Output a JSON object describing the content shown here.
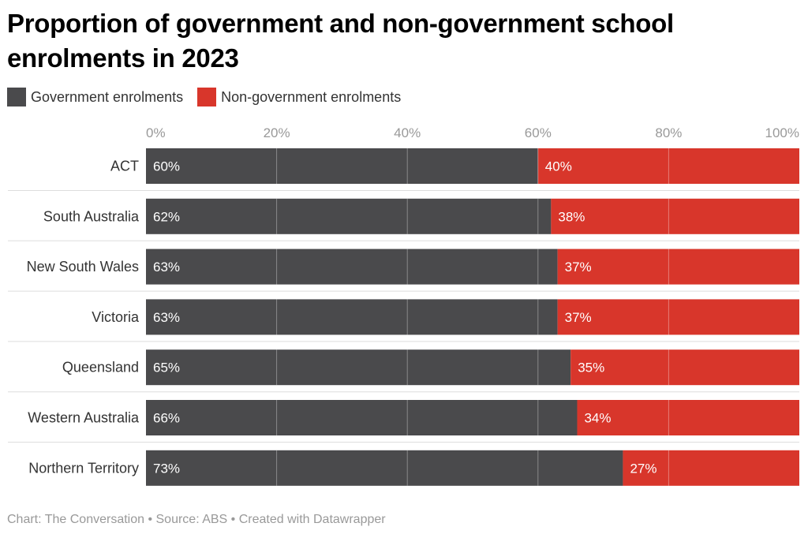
{
  "chart_data": {
    "type": "bar",
    "orientation": "horizontal",
    "stacked": true,
    "title": "Proportion of government and non-government school enrolments in 2023",
    "categories": [
      "ACT",
      "South Australia",
      "New South Wales",
      "Victoria",
      "Queensland",
      "Western Australia",
      "Northern Territory"
    ],
    "series": [
      {
        "name": "Government enrolments",
        "color": "#4a4a4c",
        "values": [
          60,
          62,
          63,
          63,
          65,
          66,
          73
        ],
        "labels": [
          "60%",
          "62%",
          "63%",
          "63%",
          "65%",
          "66%",
          "73%"
        ]
      },
      {
        "name": "Non-government enrolments",
        "color": "#d8362b",
        "values": [
          40,
          38,
          37,
          37,
          35,
          34,
          27
        ],
        "labels": [
          "40%",
          "38%",
          "37%",
          "37%",
          "35%",
          "34%",
          "27%"
        ]
      }
    ],
    "xlim": [
      0,
      100
    ],
    "x_ticks": [
      "0%",
      "20%",
      "40%",
      "60%",
      "80%",
      "100%"
    ],
    "grid": true,
    "legend_position": "top-left"
  },
  "footer": "Chart: The Conversation • Source: ABS • Created with Datawrapper"
}
